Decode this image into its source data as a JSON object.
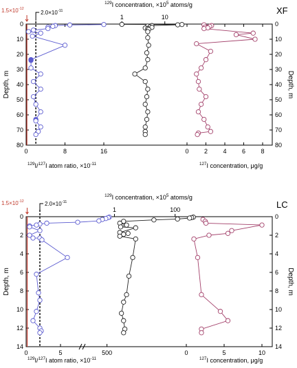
{
  "chart_data": [
    {
      "type": "scatter",
      "panel_label": "XF",
      "top_axis_label": "129I concentration, ×10⁵ atoms/g",
      "top_axis_label_parts": [
        "129",
        "I concentration, ×10",
        "5",
        " atoms/g"
      ],
      "ratio_marker_red": "1.5×10⁻¹²",
      "ratio_marker_red_parts": [
        "1.5×10",
        "-12"
      ],
      "ratio_marker_black": "2.0×10⁻¹¹",
      "ratio_marker_black_parts": [
        "2.0×10",
        "-11"
      ],
      "ylabel_left": "Depth, m",
      "ylabel_right": "Depth, m",
      "ylim": [
        0,
        80
      ],
      "y_ticks": [
        "0",
        "10",
        "20",
        "30",
        "40",
        "50",
        "60",
        "70",
        "80"
      ],
      "ratio_axis": {
        "label": "129I/127I atom ratio, ×10⁻¹¹",
        "label_parts": [
          "129",
          "I/",
          "127",
          "I atom ratio, ×10",
          "-11"
        ],
        "xlim": [
          0,
          16
        ],
        "ticks": [
          "0",
          "8",
          "16"
        ]
      },
      "conc129_axis": {
        "scale": "log",
        "ticks": [
          "1",
          "10"
        ]
      },
      "conc127_axis": {
        "label": "127I concentration, μg/g",
        "label_parts": [
          "127",
          "I concentration, μg/g"
        ],
        "xlim": [
          0,
          8
        ],
        "ticks": [
          "0",
          "2",
          "4",
          "6",
          "8"
        ]
      },
      "series": [
        {
          "color": "#5b5bd0",
          "axis": "ratio",
          "x": [
            16,
            9,
            6,
            5.5,
            4.5,
            4.5,
            1.5,
            0.5,
            3,
            1.3,
            8,
            1,
            1,
            1,
            3,
            1.5,
            3,
            1.5,
            2,
            3,
            2,
            2,
            2,
            3,
            2.5,
            2
          ],
          "depth": [
            0.3,
            0.6,
            1,
            1.5,
            2,
            3,
            4,
            5,
            6,
            8,
            14,
            23.5,
            24,
            29,
            33,
            38,
            43,
            48,
            53,
            58,
            63,
            63.5,
            64,
            68,
            71,
            73
          ]
        },
        {
          "color": "#222222",
          "axis": "conc129",
          "x": [
            1,
            25,
            20,
            5,
            4,
            4.5,
            5,
            3.5,
            4,
            4.2,
            4,
            4,
            4.2,
            3.8,
            4,
            3.5,
            2,
            3.5,
            4,
            3.8,
            3.5,
            4,
            3.8,
            3.5,
            3.5,
            3.5
          ],
          "depth": [
            0.2,
            0.3,
            0.5,
            1,
            1.3,
            1.8,
            2.2,
            2.6,
            3.0,
            3.5,
            5,
            9,
            14,
            19,
            23.5,
            29,
            33,
            38,
            43,
            48,
            53,
            58,
            63,
            68,
            71,
            73
          ]
        },
        {
          "color": "#a3406a",
          "axis": "conc127",
          "x": [
            1.8,
            2.6,
            2.4,
            1.9,
            2.2,
            1.8,
            7.0,
            5.2,
            7.2,
            1.0,
            2.5,
            2.0,
            1.5,
            1.0,
            1.2,
            1.3,
            2.0,
            1.5,
            1.2,
            1.8,
            2.2,
            2.5,
            1.2,
            1.1
          ],
          "depth": [
            0.5,
            1,
            1.5,
            2,
            2.5,
            3,
            6,
            7,
            10,
            13,
            18,
            23.5,
            29,
            33,
            38,
            43,
            48,
            53,
            58,
            63,
            68,
            71,
            72,
            73
          ]
        }
      ]
    },
    {
      "type": "scatter",
      "panel_label": "LC",
      "top_axis_label": "129I concentration, ×10⁵ atoms/g",
      "top_axis_label_parts": [
        "129",
        "I concentration, ×10",
        "5",
        " atoms/g"
      ],
      "ratio_marker_red": "1.5×10⁻¹²",
      "ratio_marker_red_parts": [
        "1.5×10",
        "-12"
      ],
      "ratio_marker_black": "2.0×10⁻¹¹",
      "ratio_marker_black_parts": [
        "2.0×10",
        "-11"
      ],
      "ylabel_left": "Depth, m",
      "ylabel_right": "Depth, m",
      "ylim": [
        0,
        14
      ],
      "y_ticks": [
        "0",
        "2",
        "4",
        "6",
        "8",
        "10",
        "12",
        "14"
      ],
      "ratio_axis": {
        "label": "129I/127I atom ratio, ×10⁻¹¹",
        "label_parts": [
          "129",
          "I/",
          "127",
          "I atom ratio, ×10",
          "-11"
        ],
        "segments": [
          {
            "xlim": [
              0,
              8
            ],
            "ticks": [
              "0",
              "5"
            ]
          },
          {
            "xlim": [
              100,
              600
            ],
            "ticks": [
              "500"
            ]
          }
        ]
      },
      "conc129_axis": {
        "scale": "log",
        "ticks": [
          "1",
          "100"
        ]
      },
      "conc127_axis": {
        "label": "127I concentration, μg/g",
        "label_parts": [
          "127",
          "I concentration, μg/g"
        ],
        "xlim": [
          0,
          10
        ],
        "ticks": [
          "0",
          "5",
          "10"
        ]
      },
      "series": [
        {
          "color": "#5b5bd0",
          "axis": "ratio",
          "x": [
            540,
            520,
            480,
            420,
            360,
            7.5,
            3,
            2,
            1.5,
            0.5,
            0.5,
            2,
            0.5,
            1,
            2,
            2.3,
            6,
            1.5,
            1.8,
            2,
            1.5,
            1,
            2,
            2.2,
            2
          ],
          "depth": [
            0.05,
            0.1,
            0.2,
            0.3,
            0.45,
            0.6,
            0.7,
            0.8,
            0.9,
            1.0,
            1.1,
            1.5,
            2.0,
            2.3,
            2.3,
            2.5,
            4.4,
            6.2,
            8.2,
            9.0,
            10.2,
            11.2,
            12.0,
            12.3,
            12.5
          ]
        },
        {
          "color": "#222222",
          "axis": "conc129",
          "x": [
            400,
            350,
            300,
            120,
            20,
            2,
            1.5,
            2.5,
            1.6,
            5,
            1.5,
            2.8,
            2,
            1.5,
            5,
            4,
            3,
            2.5,
            2,
            1.7,
            2,
            2.2,
            2
          ],
          "depth": [
            0.05,
            0.1,
            0.15,
            0.25,
            0.35,
            0.5,
            0.7,
            0.9,
            1.1,
            1.2,
            1.7,
            1.8,
            1.9,
            2.1,
            2.4,
            4.4,
            6.4,
            8.4,
            9.2,
            10.4,
            11.2,
            12.1,
            12.5
          ]
        },
        {
          "color": "#a3406a",
          "axis": "conc127",
          "x": [
            2.2,
            2.5,
            2.6,
            10.0,
            6.0,
            5.5,
            3.0,
            1.0,
            1.5,
            2.0,
            4.5,
            5.5,
            2.0,
            2.0
          ],
          "depth": [
            0.3,
            0.5,
            0.7,
            0.9,
            1.5,
            1.8,
            2.0,
            2.4,
            4.4,
            8.4,
            10.2,
            11.2,
            12.1,
            12.5
          ]
        }
      ]
    }
  ]
}
